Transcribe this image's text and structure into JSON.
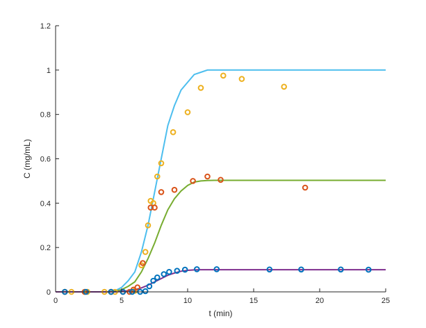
{
  "chart_data": {
    "type": "scatter",
    "xlabel": "t (min)",
    "ylabel": "C (mg/mL)",
    "xlim": [
      0,
      25
    ],
    "ylim": [
      0,
      1.2
    ],
    "xticks": [
      0,
      5,
      10,
      15,
      20,
      25
    ],
    "yticks": [
      0,
      0.2,
      0.4,
      0.6,
      0.8,
      1,
      1.2
    ],
    "xtick_labels": [
      "0",
      "5",
      "10",
      "15",
      "20",
      "25"
    ],
    "ytick_labels": [
      "0",
      "0.2",
      "0.4",
      "0.6",
      "0.8",
      "1",
      "1.2"
    ],
    "grid": false,
    "legend": "none",
    "series": [
      {
        "kind": "line",
        "color": "#4DBEEE",
        "x": [
          0,
          1,
          2,
          3,
          4,
          4.5,
          5,
          5.5,
          6,
          6.5,
          7,
          7.5,
          8,
          8.5,
          9,
          9.5,
          10,
          10.5,
          11,
          11.5,
          12,
          13,
          14,
          15,
          20,
          25
        ],
        "y": [
          0,
          0,
          0,
          0,
          0,
          0.005,
          0.02,
          0.05,
          0.09,
          0.18,
          0.3,
          0.45,
          0.6,
          0.75,
          0.84,
          0.91,
          0.945,
          0.98,
          0.99,
          1.0,
          1.0,
          1.0,
          1.0,
          1.0,
          1.0,
          1.0
        ]
      },
      {
        "kind": "line",
        "color": "#77AC30",
        "x": [
          0,
          1,
          2,
          3,
          4,
          4.5,
          5,
          5.5,
          6,
          6.5,
          7,
          7.5,
          8,
          8.5,
          9,
          9.5,
          10,
          10.5,
          11,
          11.5,
          12,
          13,
          14,
          15,
          20,
          25
        ],
        "y": [
          0,
          0,
          0,
          0,
          0,
          0.003,
          0.01,
          0.025,
          0.045,
          0.09,
          0.15,
          0.22,
          0.3,
          0.37,
          0.42,
          0.455,
          0.48,
          0.495,
          0.5,
          0.502,
          0.503,
          0.503,
          0.503,
          0.503,
          0.503,
          0.503
        ]
      },
      {
        "kind": "line",
        "color": "#7E2F8E",
        "x": [
          0,
          1,
          2,
          3,
          4,
          4.5,
          5,
          5.5,
          6,
          6.5,
          7,
          7.5,
          8,
          8.5,
          9,
          9.5,
          10,
          10.5,
          11,
          11.5,
          12,
          13,
          14,
          15,
          20,
          25
        ],
        "y": [
          0,
          0,
          0,
          0,
          0,
          0,
          0.002,
          0.005,
          0.01,
          0.018,
          0.03,
          0.045,
          0.06,
          0.075,
          0.085,
          0.093,
          0.097,
          0.099,
          0.1,
          0.1,
          0.1,
          0.1,
          0.1,
          0.1,
          0.1,
          0.1
        ]
      },
      {
        "kind": "markers",
        "color": "#EDB120",
        "x": [
          0.7,
          1.2,
          2.2,
          2.4,
          3.7,
          4.2,
          4.5,
          6.0,
          6.5,
          6.8,
          7.0,
          7.2,
          7.4,
          7.7,
          8.0,
          8.9,
          10.0,
          11.0,
          12.7,
          14.1,
          17.3
        ],
        "y": [
          0,
          0,
          0,
          0,
          0,
          0,
          0,
          0.005,
          0.12,
          0.18,
          0.3,
          0.41,
          0.4,
          0.52,
          0.58,
          0.72,
          0.81,
          0.92,
          0.975,
          0.96,
          0.925
        ]
      },
      {
        "kind": "markers",
        "color": "#D95319",
        "x": [
          0.7,
          2.2,
          4.2,
          5.1,
          5.6,
          5.9,
          6.2,
          6.6,
          7.2,
          7.5,
          8.0,
          9.0,
          10.4,
          11.5,
          12.5,
          18.9
        ],
        "y": [
          0,
          0,
          0,
          0,
          0,
          0.01,
          0.02,
          0.13,
          0.38,
          0.38,
          0.45,
          0.46,
          0.5,
          0.52,
          0.505,
          0.47
        ]
      },
      {
        "kind": "markers",
        "color": "#0072BD",
        "x": [
          0.7,
          2.3,
          4.2,
          5.1,
          5.8,
          6.4,
          6.8,
          7.1,
          7.4,
          7.7,
          8.2,
          8.6,
          9.2,
          9.8,
          10.7,
          12.2,
          16.2,
          18.6,
          21.6,
          23.7
        ],
        "y": [
          0,
          0,
          0,
          0,
          0,
          0,
          0.003,
          0.025,
          0.05,
          0.065,
          0.08,
          0.09,
          0.095,
          0.1,
          0.102,
          0.102,
          0.101,
          0.101,
          0.101,
          0.1
        ]
      }
    ]
  }
}
